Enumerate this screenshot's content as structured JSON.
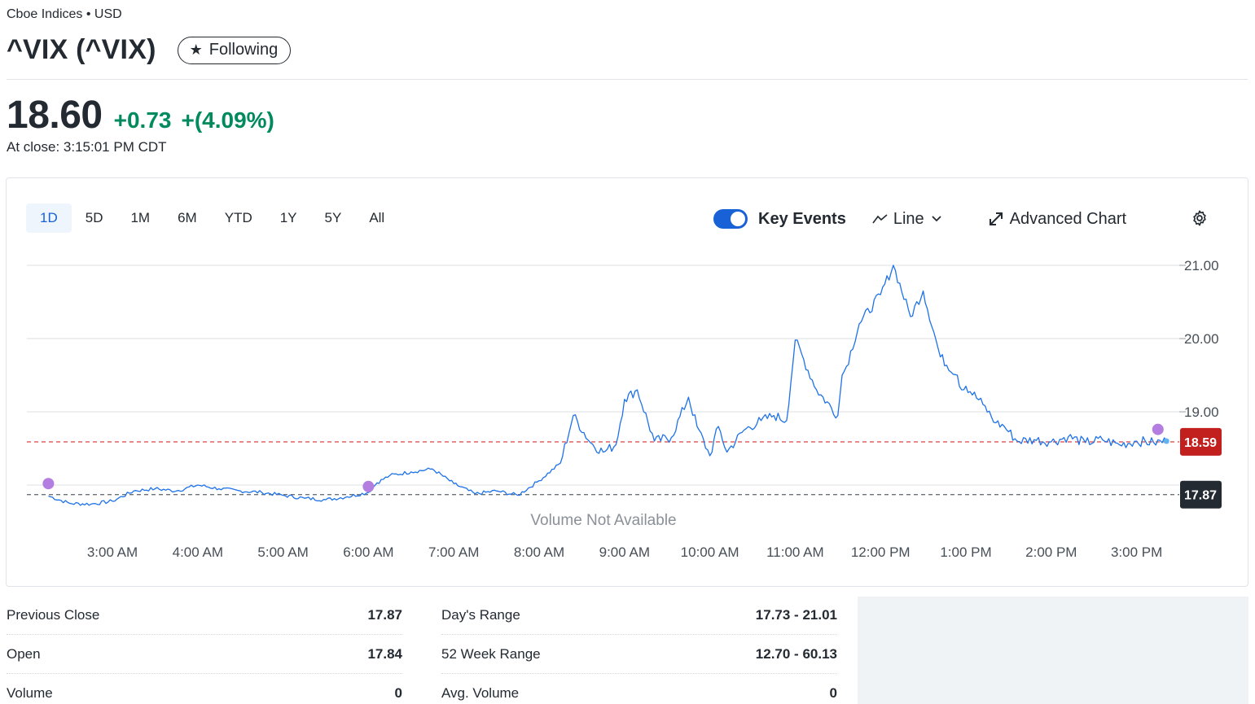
{
  "header": {
    "exchange": "Cboe Indices • USD",
    "title": "^VIX (^VIX)",
    "follow_label": "Following"
  },
  "quote": {
    "price": "18.60",
    "change": "+0.73",
    "change_pct": "+(4.09%)",
    "close_time": "At close: 3:15:01 PM CDT"
  },
  "chart_controls": {
    "ranges": [
      "1D",
      "5D",
      "1M",
      "6M",
      "YTD",
      "1Y",
      "5Y",
      "All"
    ],
    "active_range": "1D",
    "key_events_label": "Key Events",
    "key_events_on": true,
    "chart_type_label": "Line",
    "advanced_label": "Advanced Chart"
  },
  "chart_data": {
    "type": "line",
    "x_ticks": [
      "3:00 AM",
      "4:00 AM",
      "5:00 AM",
      "6:00 AM",
      "7:00 AM",
      "8:00 AM",
      "9:00 AM",
      "10:00 AM",
      "11:00 AM",
      "12:00 PM",
      "1:00 PM",
      "2:00 PM",
      "3:00 PM"
    ],
    "y_ticks": [
      "21.00",
      "20.00",
      "19.00"
    ],
    "ylim": [
      17.5,
      21.1
    ],
    "last_price_label": "18.59",
    "prev_close_label": "17.87",
    "volume_note": "Volume Not Available",
    "colors": {
      "line": "#1e72e8",
      "last": "#c21f1f",
      "prev": "#232a31",
      "event": "#b37ee0"
    },
    "series": [
      {
        "x": [
          2.25,
          2.5,
          2.75,
          3.0,
          3.25,
          3.5,
          3.75,
          4.0,
          4.25,
          4.5,
          4.75,
          5.0,
          5.25,
          5.5,
          5.75,
          6.0,
          6.1,
          6.25,
          6.5,
          6.75,
          7.0,
          7.25,
          7.5,
          7.75,
          8.0,
          8.25,
          8.4,
          8.6,
          8.75,
          8.9,
          9.0,
          9.15,
          9.35,
          9.55,
          9.75,
          9.85,
          10.0,
          10.1,
          10.2,
          10.4,
          10.6,
          10.75,
          10.9,
          11.0,
          11.25,
          11.5,
          11.55,
          11.6,
          11.75,
          12.0,
          12.15,
          12.35,
          12.5,
          12.7,
          12.9,
          12.95,
          13.0,
          13.2,
          13.35,
          13.45,
          13.6,
          13.8,
          14.0,
          14.2,
          14.4,
          14.6,
          14.8,
          15.0,
          15.2,
          15.35
        ],
        "y": [
          17.85,
          17.75,
          17.74,
          17.78,
          17.92,
          17.95,
          17.92,
          18.0,
          17.95,
          17.92,
          17.9,
          17.86,
          17.82,
          17.8,
          17.84,
          17.9,
          18.03,
          18.13,
          18.18,
          18.22,
          18.02,
          17.88,
          17.92,
          17.86,
          18.06,
          18.3,
          18.95,
          18.58,
          18.45,
          18.55,
          19.17,
          19.3,
          18.6,
          18.65,
          19.2,
          18.8,
          18.4,
          18.8,
          18.45,
          18.75,
          18.88,
          18.95,
          18.88,
          19.98,
          19.3,
          18.95,
          19.5,
          19.62,
          20.2,
          20.6,
          21.0,
          20.3,
          20.65,
          19.75,
          19.5,
          19.3,
          19.35,
          19.1,
          18.85,
          18.8,
          18.6,
          18.62,
          18.59,
          18.66,
          18.58,
          18.62,
          18.55,
          18.6,
          18.58,
          18.6
        ],
        "unit_note": "x = hours (local), y = index value"
      }
    ],
    "events": [
      {
        "x": 2.25,
        "y": 18.02
      },
      {
        "x": 6.0,
        "y": 17.98
      },
      {
        "x": 15.25,
        "y": 18.76
      }
    ]
  },
  "stats": {
    "left": [
      {
        "label": "Previous Close",
        "value": "17.87"
      },
      {
        "label": "Open",
        "value": "17.84"
      },
      {
        "label": "Volume",
        "value": "0"
      }
    ],
    "right": [
      {
        "label": "Day's Range",
        "value": "17.73 - 21.01"
      },
      {
        "label": "52 Week Range",
        "value": "12.70 - 60.13"
      },
      {
        "label": "Avg. Volume",
        "value": "0"
      }
    ]
  }
}
